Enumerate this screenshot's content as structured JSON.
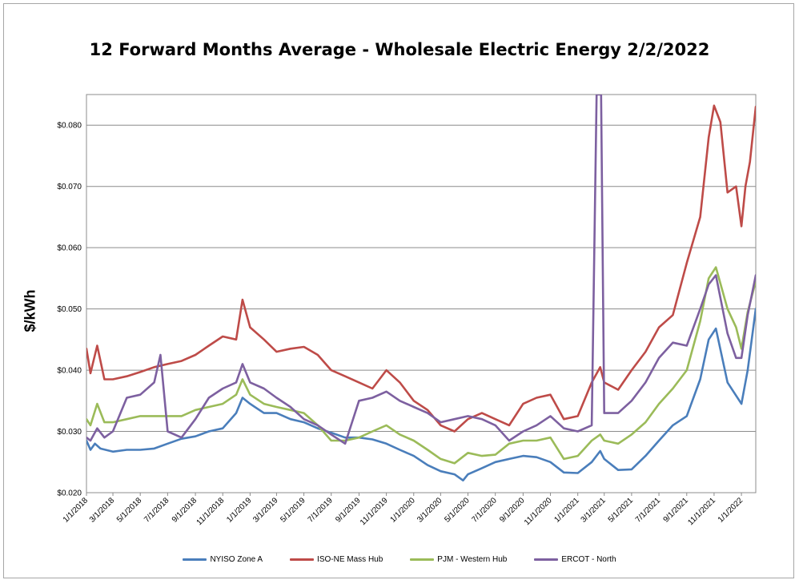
{
  "chart_data": {
    "type": "line",
    "title": "12 Forward Months Average - Wholesale Electric Energy 2/2/2022",
    "ylabel": "$/kWh",
    "xlabel": "",
    "ylim": [
      0.02,
      0.085
    ],
    "ytick_values": [
      0.02,
      0.03,
      0.04,
      0.05,
      0.06,
      0.07,
      0.08
    ],
    "yticks": [
      "$0.020",
      "$0.030",
      "$0.040",
      "$0.050",
      "$0.060",
      "$0.070",
      "$0.080"
    ],
    "xticks": [
      "1/1/2018",
      "3/1/2018",
      "5/1/2018",
      "7/1/2018",
      "9/1/2018",
      "11/1/2018",
      "1/1/2019",
      "3/1/2019",
      "5/1/2019",
      "7/1/2019",
      "9/1/2019",
      "11/1/2019",
      "1/1/2020",
      "3/1/2020",
      "5/1/2020",
      "7/1/2020",
      "9/1/2020",
      "11/1/2020",
      "1/1/2021",
      "3/1/2021",
      "5/1/2021",
      "7/1/2021",
      "9/1/2021",
      "11/1/2021",
      "1/1/2022"
    ],
    "x_range": [
      "1/1/2018",
      "2/2/2022"
    ],
    "grid": "horizontal",
    "legend_position": "bottom",
    "series": [
      {
        "name": "NYISO Zone A",
        "color": "#4a7ebb",
        "points": [
          [
            "1/1/2018",
            0.0285
          ],
          [
            "1/10/2018",
            0.027
          ],
          [
            "1/20/2018",
            0.028
          ],
          [
            "2/1/2018",
            0.0272
          ],
          [
            "3/1/2018",
            0.0267
          ],
          [
            "4/1/2018",
            0.027
          ],
          [
            "5/1/2018",
            0.027
          ],
          [
            "6/1/2018",
            0.0272
          ],
          [
            "7/1/2018",
            0.028
          ],
          [
            "8/1/2018",
            0.0288
          ],
          [
            "9/1/2018",
            0.0292
          ],
          [
            "10/1/2018",
            0.03
          ],
          [
            "11/1/2018",
            0.0305
          ],
          [
            "12/1/2018",
            0.033
          ],
          [
            "12/15/2018",
            0.0355
          ],
          [
            "1/1/2019",
            0.0345
          ],
          [
            "2/1/2019",
            0.033
          ],
          [
            "3/1/2019",
            0.033
          ],
          [
            "4/1/2019",
            0.032
          ],
          [
            "5/1/2019",
            0.0315
          ],
          [
            "6/1/2019",
            0.0305
          ],
          [
            "7/1/2019",
            0.0298
          ],
          [
            "8/1/2019",
            0.029
          ],
          [
            "9/1/2019",
            0.029
          ],
          [
            "10/1/2019",
            0.0287
          ],
          [
            "11/1/2019",
            0.028
          ],
          [
            "12/1/2019",
            0.027
          ],
          [
            "1/1/2020",
            0.026
          ],
          [
            "2/1/2020",
            0.0245
          ],
          [
            "3/1/2020",
            0.0235
          ],
          [
            "4/1/2020",
            0.023
          ],
          [
            "4/20/2020",
            0.022
          ],
          [
            "5/1/2020",
            0.023
          ],
          [
            "6/1/2020",
            0.024
          ],
          [
            "7/1/2020",
            0.025
          ],
          [
            "8/1/2020",
            0.0255
          ],
          [
            "9/1/2020",
            0.026
          ],
          [
            "10/1/2020",
            0.0258
          ],
          [
            "11/1/2020",
            0.025
          ],
          [
            "12/1/2020",
            0.0233
          ],
          [
            "1/1/2021",
            0.0232
          ],
          [
            "2/1/2021",
            0.025
          ],
          [
            "2/20/2021",
            0.0268
          ],
          [
            "3/1/2021",
            0.0255
          ],
          [
            "4/1/2021",
            0.0237
          ],
          [
            "5/1/2021",
            0.0238
          ],
          [
            "6/1/2021",
            0.026
          ],
          [
            "7/1/2021",
            0.0285
          ],
          [
            "8/1/2021",
            0.031
          ],
          [
            "9/1/2021",
            0.0325
          ],
          [
            "10/1/2021",
            0.0385
          ],
          [
            "10/20/2021",
            0.045
          ],
          [
            "11/5/2021",
            0.0468
          ],
          [
            "12/1/2021",
            0.038
          ],
          [
            "1/1/2022",
            0.0345
          ],
          [
            "1/15/2022",
            0.04
          ],
          [
            "2/2/2022",
            0.05
          ]
        ]
      },
      {
        "name": "ISO-NE Mass Hub",
        "color": "#be4b48",
        "points": [
          [
            "1/1/2018",
            0.0435
          ],
          [
            "1/10/2018",
            0.0395
          ],
          [
            "1/25/2018",
            0.044
          ],
          [
            "2/10/2018",
            0.0385
          ],
          [
            "3/1/2018",
            0.0385
          ],
          [
            "4/1/2018",
            0.039
          ],
          [
            "5/1/2018",
            0.0397
          ],
          [
            "6/1/2018",
            0.0405
          ],
          [
            "7/1/2018",
            0.041
          ],
          [
            "8/1/2018",
            0.0415
          ],
          [
            "9/1/2018",
            0.0425
          ],
          [
            "10/1/2018",
            0.044
          ],
          [
            "11/1/2018",
            0.0455
          ],
          [
            "12/1/2018",
            0.045
          ],
          [
            "12/15/2018",
            0.0515
          ],
          [
            "1/1/2019",
            0.047
          ],
          [
            "2/1/2019",
            0.045
          ],
          [
            "3/1/2019",
            0.043
          ],
          [
            "4/1/2019",
            0.0435
          ],
          [
            "5/1/2019",
            0.0438
          ],
          [
            "6/1/2019",
            0.0425
          ],
          [
            "7/1/2019",
            0.04
          ],
          [
            "8/1/2019",
            0.039
          ],
          [
            "9/1/2019",
            0.038
          ],
          [
            "10/1/2019",
            0.037
          ],
          [
            "11/1/2019",
            0.04
          ],
          [
            "12/1/2019",
            0.038
          ],
          [
            "1/1/2020",
            0.035
          ],
          [
            "2/1/2020",
            0.0335
          ],
          [
            "3/1/2020",
            0.031
          ],
          [
            "4/1/2020",
            0.03
          ],
          [
            "5/1/2020",
            0.032
          ],
          [
            "6/1/2020",
            0.033
          ],
          [
            "7/1/2020",
            0.032
          ],
          [
            "8/1/2020",
            0.031
          ],
          [
            "9/1/2020",
            0.0345
          ],
          [
            "10/1/2020",
            0.0355
          ],
          [
            "11/1/2020",
            0.036
          ],
          [
            "12/1/2020",
            0.032
          ],
          [
            "1/1/2021",
            0.0325
          ],
          [
            "2/1/2021",
            0.038
          ],
          [
            "2/20/2021",
            0.0405
          ],
          [
            "3/1/2021",
            0.038
          ],
          [
            "4/1/2021",
            0.0368
          ],
          [
            "5/1/2021",
            0.04
          ],
          [
            "6/1/2021",
            0.043
          ],
          [
            "7/1/2021",
            0.047
          ],
          [
            "8/1/2021",
            0.049
          ],
          [
            "9/1/2021",
            0.0575
          ],
          [
            "10/1/2021",
            0.065
          ],
          [
            "10/20/2021",
            0.078
          ],
          [
            "11/1/2021",
            0.0832
          ],
          [
            "11/15/2021",
            0.0805
          ],
          [
            "12/1/2021",
            0.069
          ],
          [
            "12/20/2021",
            0.07
          ],
          [
            "1/1/2022",
            0.0635
          ],
          [
            "1/10/2022",
            0.07
          ],
          [
            "1/20/2022",
            0.074
          ],
          [
            "2/2/2022",
            0.083
          ]
        ]
      },
      {
        "name": "PJM - Western Hub",
        "color": "#9bbb59",
        "points": [
          [
            "1/1/2018",
            0.032
          ],
          [
            "1/10/2018",
            0.031
          ],
          [
            "1/25/2018",
            0.0345
          ],
          [
            "2/10/2018",
            0.0315
          ],
          [
            "3/1/2018",
            0.0315
          ],
          [
            "4/1/2018",
            0.032
          ],
          [
            "5/1/2018",
            0.0325
          ],
          [
            "6/1/2018",
            0.0325
          ],
          [
            "7/1/2018",
            0.0325
          ],
          [
            "8/1/2018",
            0.0325
          ],
          [
            "9/1/2018",
            0.0335
          ],
          [
            "10/1/2018",
            0.034
          ],
          [
            "11/1/2018",
            0.0345
          ],
          [
            "12/1/2018",
            0.036
          ],
          [
            "12/15/2018",
            0.0385
          ],
          [
            "1/1/2019",
            0.036
          ],
          [
            "2/1/2019",
            0.0345
          ],
          [
            "3/1/2019",
            0.034
          ],
          [
            "4/1/2019",
            0.0335
          ],
          [
            "5/1/2019",
            0.033
          ],
          [
            "6/1/2019",
            0.031
          ],
          [
            "7/1/2019",
            0.0285
          ],
          [
            "8/1/2019",
            0.0285
          ],
          [
            "9/1/2019",
            0.029
          ],
          [
            "10/1/2019",
            0.03
          ],
          [
            "11/1/2019",
            0.031
          ],
          [
            "12/1/2019",
            0.0295
          ],
          [
            "1/1/2020",
            0.0285
          ],
          [
            "2/1/2020",
            0.027
          ],
          [
            "3/1/2020",
            0.0255
          ],
          [
            "4/1/2020",
            0.0248
          ],
          [
            "5/1/2020",
            0.0265
          ],
          [
            "6/1/2020",
            0.026
          ],
          [
            "7/1/2020",
            0.0262
          ],
          [
            "8/1/2020",
            0.028
          ],
          [
            "9/1/2020",
            0.0285
          ],
          [
            "10/1/2020",
            0.0285
          ],
          [
            "11/1/2020",
            0.029
          ],
          [
            "12/1/2020",
            0.0255
          ],
          [
            "1/1/2021",
            0.026
          ],
          [
            "2/1/2021",
            0.0285
          ],
          [
            "2/20/2021",
            0.0295
          ],
          [
            "3/1/2021",
            0.0285
          ],
          [
            "4/1/2021",
            0.028
          ],
          [
            "5/1/2021",
            0.0295
          ],
          [
            "6/1/2021",
            0.0315
          ],
          [
            "7/1/2021",
            0.0345
          ],
          [
            "8/1/2021",
            0.037
          ],
          [
            "9/1/2021",
            0.04
          ],
          [
            "10/1/2021",
            0.048
          ],
          [
            "10/20/2021",
            0.055
          ],
          [
            "11/5/2021",
            0.0568
          ],
          [
            "12/1/2021",
            0.05
          ],
          [
            "12/20/2021",
            0.047
          ],
          [
            "1/1/2022",
            0.0435
          ],
          [
            "1/15/2022",
            0.0495
          ],
          [
            "2/2/2022",
            0.0545
          ]
        ]
      },
      {
        "name": "ERCOT - North",
        "color": "#7d60a0",
        "points": [
          [
            "1/1/2018",
            0.029
          ],
          [
            "1/10/2018",
            0.0285
          ],
          [
            "1/25/2018",
            0.0305
          ],
          [
            "2/10/2018",
            0.029
          ],
          [
            "3/1/2018",
            0.03
          ],
          [
            "4/1/2018",
            0.0355
          ],
          [
            "5/1/2018",
            0.036
          ],
          [
            "6/1/2018",
            0.038
          ],
          [
            "6/15/2018",
            0.0425
          ],
          [
            "7/1/2018",
            0.03
          ],
          [
            "8/1/2018",
            0.029
          ],
          [
            "9/1/2018",
            0.032
          ],
          [
            "10/1/2018",
            0.0355
          ],
          [
            "11/1/2018",
            0.037
          ],
          [
            "12/1/2018",
            0.038
          ],
          [
            "12/15/2018",
            0.041
          ],
          [
            "1/1/2019",
            0.038
          ],
          [
            "2/1/2019",
            0.037
          ],
          [
            "3/1/2019",
            0.0355
          ],
          [
            "4/1/2019",
            0.034
          ],
          [
            "5/1/2019",
            0.032
          ],
          [
            "6/1/2019",
            0.031
          ],
          [
            "7/1/2019",
            0.0295
          ],
          [
            "8/1/2019",
            0.028
          ],
          [
            "9/1/2019",
            0.035
          ],
          [
            "10/1/2019",
            0.0355
          ],
          [
            "11/1/2019",
            0.0365
          ],
          [
            "12/1/2019",
            0.035
          ],
          [
            "1/1/2020",
            0.034
          ],
          [
            "2/1/2020",
            0.033
          ],
          [
            "3/1/2020",
            0.0315
          ],
          [
            "4/1/2020",
            0.032
          ],
          [
            "5/1/2020",
            0.0325
          ],
          [
            "6/1/2020",
            0.032
          ],
          [
            "7/1/2020",
            0.031
          ],
          [
            "8/1/2020",
            0.0285
          ],
          [
            "9/1/2020",
            0.03
          ],
          [
            "10/1/2020",
            0.031
          ],
          [
            "11/1/2020",
            0.0325
          ],
          [
            "12/1/2020",
            0.0305
          ],
          [
            "1/1/2021",
            0.03
          ],
          [
            "2/1/2021",
            0.031
          ],
          [
            "2/12/2021",
            0.085
          ],
          [
            "2/22/2021",
            0.085
          ],
          [
            "3/1/2021",
            0.033
          ],
          [
            "4/1/2021",
            0.033
          ],
          [
            "5/1/2021",
            0.035
          ],
          [
            "6/1/2021",
            0.038
          ],
          [
            "7/1/2021",
            0.042
          ],
          [
            "8/1/2021",
            0.0445
          ],
          [
            "9/1/2021",
            0.044
          ],
          [
            "10/1/2021",
            0.05
          ],
          [
            "10/20/2021",
            0.054
          ],
          [
            "11/5/2021",
            0.0555
          ],
          [
            "12/1/2021",
            0.046
          ],
          [
            "12/20/2021",
            0.042
          ],
          [
            "1/1/2022",
            0.042
          ],
          [
            "1/15/2022",
            0.049
          ],
          [
            "2/2/2022",
            0.0555
          ]
        ]
      }
    ]
  }
}
